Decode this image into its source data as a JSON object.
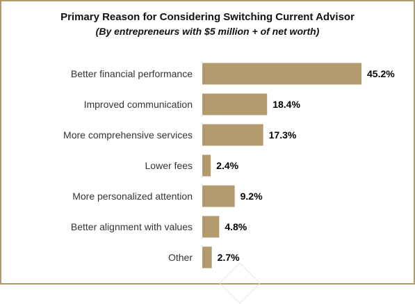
{
  "chart_data": {
    "type": "bar",
    "orientation": "horizontal",
    "title": "Primary Reason for Considering Switching Current Advisor",
    "subtitle": "(By entrepreneurs with $5 million + of net worth)",
    "categories": [
      "Better financial performance",
      "Improved communication",
      "More comprehensive services",
      "Lower fees",
      "More personalized attention",
      "Better alignment with values",
      "Other"
    ],
    "values": [
      45.2,
      18.4,
      17.3,
      2.4,
      9.2,
      4.8,
      2.7
    ],
    "value_labels": [
      "45.2%",
      "18.4%",
      "17.3%",
      "2.4%",
      "9.2%",
      "4.8%",
      "2.7%"
    ],
    "xlim": [
      0,
      45.2
    ],
    "grid": false,
    "legend": "none",
    "bar_color": "#b39a6c"
  },
  "colors": {
    "bar": "#b39a6c",
    "border": "#b39a6c",
    "label_text": "#333333",
    "value_text": "#000000"
  }
}
